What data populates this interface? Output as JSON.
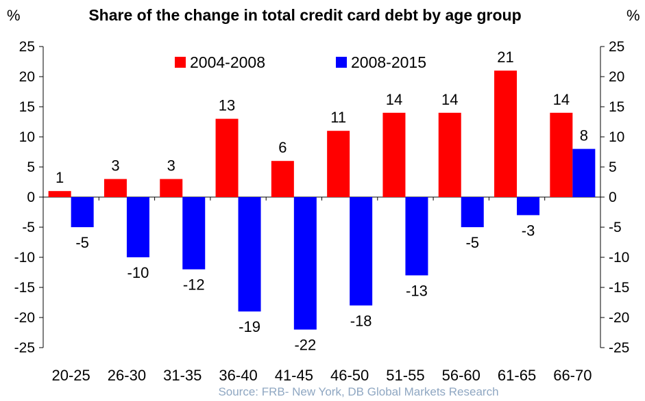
{
  "chart_data": {
    "type": "bar",
    "title": "Share of the change in total credit card debt by age group",
    "ylabel_left": "%",
    "ylabel_right": "%",
    "categories": [
      "20-25",
      "26-30",
      "31-35",
      "36-40",
      "41-45",
      "46-50",
      "51-55",
      "56-60",
      "61-65",
      "66-70"
    ],
    "series": [
      {
        "name": "2004-2008",
        "color": "#ff0000",
        "values": [
          1,
          3,
          3,
          13,
          6,
          11,
          14,
          14,
          21,
          14
        ]
      },
      {
        "name": "2008-2015",
        "color": "#0000ff",
        "values": [
          -5,
          -10,
          -12,
          -19,
          -22,
          -18,
          -13,
          -5,
          -3,
          8
        ]
      }
    ],
    "ylim": [
      -25,
      25
    ],
    "yticks": [
      "25",
      "20",
      "15",
      "10",
      "5",
      "0",
      "-5",
      "-10",
      "-15",
      "-20",
      "-25"
    ],
    "grid": false,
    "legend_position": "top"
  },
  "source": "Source: FRB- New York, DB Global Markets Research"
}
